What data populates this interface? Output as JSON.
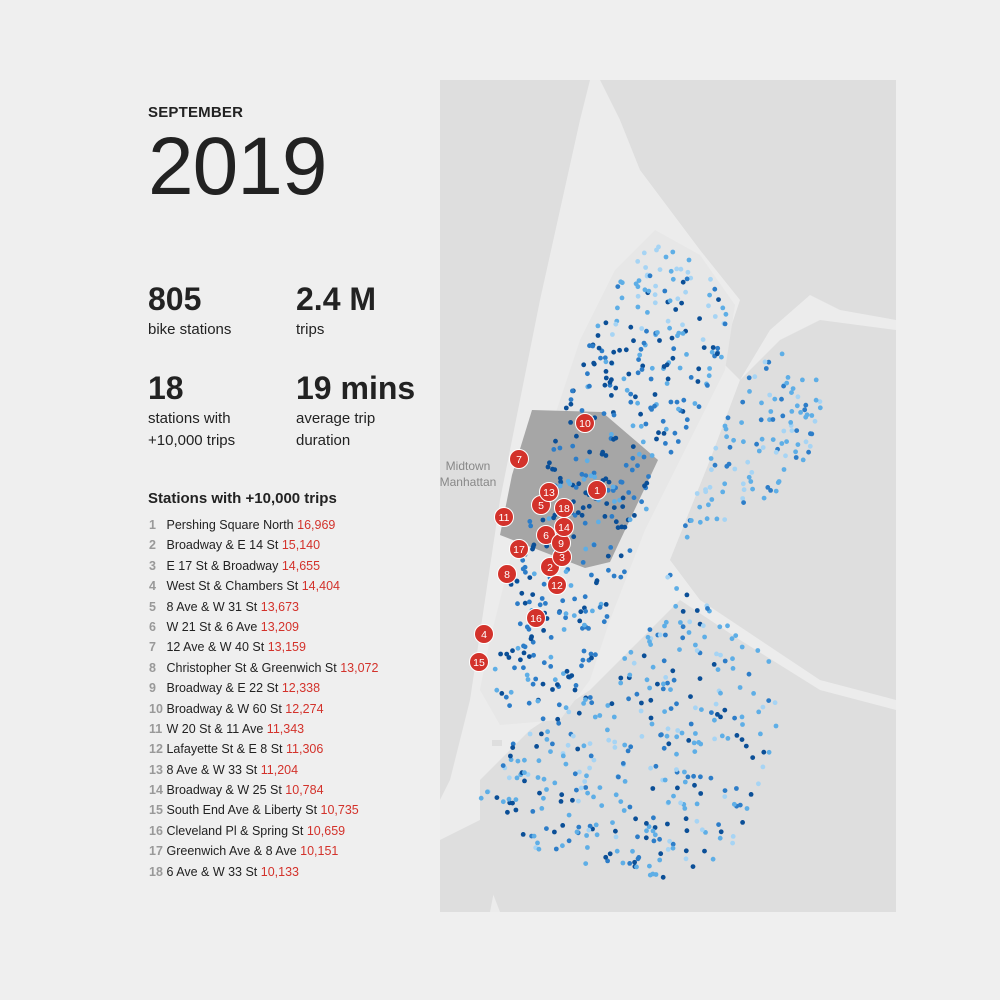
{
  "header": {
    "month": "SEPTEMBER",
    "year": "2019"
  },
  "stats": [
    {
      "value": "805",
      "label": "bike stations"
    },
    {
      "value": "2.4 M",
      "label": "trips"
    },
    {
      "value": "18",
      "label": "stations with +10,000 trips"
    },
    {
      "value": "19 mins",
      "label": "average trip duration"
    }
  ],
  "list": {
    "title": "Stations with +10,000 trips",
    "items": [
      {
        "rank": "1",
        "name": "Pershing Square North",
        "trips": "16,969"
      },
      {
        "rank": "2",
        "name": "Broadway & E 14 St",
        "trips": "15,140"
      },
      {
        "rank": "3",
        "name": "E 17 St & Broadway",
        "trips": "14,655"
      },
      {
        "rank": "4",
        "name": "West St & Chambers St",
        "trips": "14,404"
      },
      {
        "rank": "5",
        "name": "8 Ave & W 31 St",
        "trips": "13,673"
      },
      {
        "rank": "6",
        "name": "W 21 St & 6 Ave",
        "trips": "13,209"
      },
      {
        "rank": "7",
        "name": "12 Ave & W 40 St",
        "trips": "13,159"
      },
      {
        "rank": "8",
        "name": "Christopher St & Greenwich St",
        "trips": "13,072"
      },
      {
        "rank": "9",
        "name": "Broadway & E 22 St",
        "trips": "12,338"
      },
      {
        "rank": "10",
        "name": "Broadway & W 60 St",
        "trips": "12,274"
      },
      {
        "rank": "11",
        "name": "W 20 St & 11 Ave",
        "trips": "11,343"
      },
      {
        "rank": "12",
        "name": "Lafayette St & E 8 St",
        "trips": "11,306"
      },
      {
        "rank": "13",
        "name": "8 Ave & W 33 St",
        "trips": "11,204"
      },
      {
        "rank": "14",
        "name": "Broadway & W 25 St",
        "trips": "10,784"
      },
      {
        "rank": "15",
        "name": "South End Ave & Liberty St",
        "trips": "10,735"
      },
      {
        "rank": "16",
        "name": "Cleveland Pl & Spring St",
        "trips": "10,659"
      },
      {
        "rank": "17",
        "name": "Greenwich Ave & 8 Ave",
        "trips": "10,151"
      },
      {
        "rank": "18",
        "name": "6 Ave & W 33 St",
        "trips": "10,133"
      }
    ]
  },
  "map": {
    "area_label_line1": "Midtown",
    "area_label_line2": "Manhattan",
    "colors": {
      "water": "#ececec",
      "land": "#dedede",
      "manhattan": "#e7e7e7",
      "midtown": "#9a9a9a",
      "marker": "#d3322b",
      "dot_dark": "#0b4f97",
      "dot_mid": "#2d7dc8",
      "dot_light": "#5eaee6",
      "dot_pale": "#a6d4f4"
    }
  }
}
